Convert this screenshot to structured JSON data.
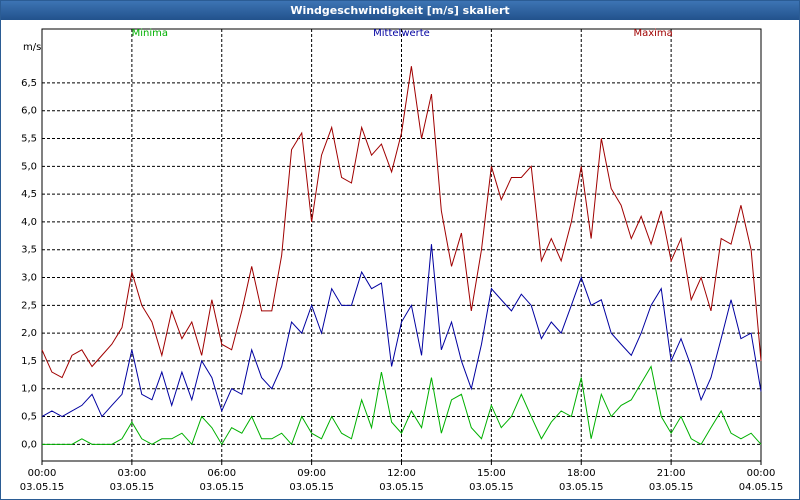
{
  "window_title": "Windgeschwindigkeit [m/s] skaliert",
  "chart_data": {
    "type": "line",
    "y_label": "m/s",
    "x": [
      0,
      0.33,
      0.67,
      1,
      1.33,
      1.67,
      2,
      2.33,
      2.67,
      3,
      3.33,
      3.67,
      4,
      4.33,
      4.67,
      5,
      5.33,
      5.67,
      6,
      6.33,
      6.67,
      7,
      7.33,
      7.67,
      8,
      8.33,
      8.67,
      9,
      9.33,
      9.67,
      10,
      10.33,
      10.67,
      11,
      11.33,
      11.67,
      12,
      12.33,
      12.67,
      13,
      13.33,
      13.67,
      14,
      14.33,
      14.67,
      15,
      15.33,
      15.67,
      16,
      16.33,
      16.67,
      17,
      17.33,
      17.67,
      18,
      18.33,
      18.67,
      19,
      19.33,
      19.67,
      20,
      20.33,
      20.67,
      21,
      21.33,
      21.67,
      22,
      22.33,
      22.67,
      23,
      23.33,
      23.67,
      24
    ],
    "series": [
      {
        "name": "Minima",
        "color": "#00b000",
        "values": [
          0,
          0,
          0,
          0,
          0.1,
          0,
          0,
          0,
          0.1,
          0.4,
          0.1,
          0,
          0.1,
          0.1,
          0.2,
          0,
          0.5,
          0.3,
          0,
          0.3,
          0.2,
          0.5,
          0.1,
          0.1,
          0.2,
          0,
          0.5,
          0.2,
          0.1,
          0.5,
          0.2,
          0.1,
          0.8,
          0.3,
          1.3,
          0.4,
          0.2,
          0.6,
          0.3,
          1.2,
          0.2,
          0.8,
          0.9,
          0.3,
          0.1,
          0.7,
          0.3,
          0.5,
          0.9,
          0.5,
          0.1,
          0.4,
          0.6,
          0.5,
          1.2,
          0.1,
          0.9,
          0.5,
          0.7,
          0.8,
          1.1,
          1.4,
          0.5,
          0.2,
          0.5,
          0.1,
          0,
          0.3,
          0.6,
          0.2,
          0.1,
          0.2,
          0
        ]
      },
      {
        "name": "Mittelwerte",
        "color": "#0000a0",
        "values": [
          0.5,
          0.6,
          0.5,
          0.6,
          0.7,
          0.9,
          0.5,
          0.7,
          0.9,
          1.7,
          0.9,
          0.8,
          1.3,
          0.7,
          1.3,
          0.8,
          1.5,
          1.2,
          0.6,
          1.0,
          0.9,
          1.7,
          1.2,
          1.0,
          1.4,
          2.2,
          2.0,
          2.5,
          2.0,
          2.8,
          2.5,
          2.5,
          3.1,
          2.8,
          2.9,
          1.4,
          2.2,
          2.5,
          1.6,
          3.6,
          1.7,
          2.2,
          1.5,
          1.0,
          1.8,
          2.8,
          2.6,
          2.4,
          2.7,
          2.5,
          1.9,
          2.2,
          2.0,
          2.5,
          3.0,
          2.5,
          2.6,
          2.0,
          1.8,
          1.6,
          2.0,
          2.5,
          2.8,
          1.5,
          1.9,
          1.4,
          0.8,
          1.2,
          1.9,
          2.6,
          1.9,
          2.0,
          0.95
        ]
      },
      {
        "name": "Maxima",
        "color": "#a00000",
        "values": [
          1.7,
          1.3,
          1.2,
          1.6,
          1.7,
          1.4,
          1.6,
          1.8,
          2.1,
          3.1,
          2.5,
          2.2,
          1.6,
          2.4,
          1.9,
          2.2,
          1.6,
          2.6,
          1.8,
          1.7,
          2.4,
          3.2,
          2.4,
          2.4,
          3.4,
          5.3,
          5.6,
          4.0,
          5.2,
          5.7,
          4.8,
          4.7,
          5.7,
          5.2,
          5.4,
          4.9,
          5.6,
          6.8,
          5.5,
          6.3,
          4.2,
          3.2,
          3.8,
          2.4,
          3.5,
          5.0,
          4.4,
          4.8,
          4.8,
          5.0,
          3.3,
          3.7,
          3.3,
          4.0,
          5.0,
          3.7,
          5.5,
          4.6,
          4.3,
          3.7,
          4.1,
          3.6,
          4.2,
          3.3,
          3.7,
          2.6,
          3.0,
          2.4,
          3.7,
          3.6,
          4.3,
          3.5,
          1.5
        ]
      }
    ],
    "xlim": [
      0,
      24
    ],
    "xticks": [
      {
        "value": 0,
        "label": "00:00\n03.05.15"
      },
      {
        "value": 3,
        "label": "03:00\n03.05.15"
      },
      {
        "value": 6,
        "label": "06:00\n03.05.15"
      },
      {
        "value": 9,
        "label": "09:00\n03.05.15"
      },
      {
        "value": 12,
        "label": "12:00\n03.05.15"
      },
      {
        "value": 15,
        "label": "15:00\n03.05.15"
      },
      {
        "value": 18,
        "label": "18:00\n03.05.15"
      },
      {
        "value": 21,
        "label": "21:00\n03.05.15"
      },
      {
        "value": 24,
        "label": "00:00\n04.05.15"
      }
    ],
    "ylim": [
      -0.3,
      7.47
    ],
    "yticks": [
      {
        "value": 0,
        "label": "0,0"
      },
      {
        "value": 0.5,
        "label": "0,5"
      },
      {
        "value": 1,
        "label": "1,0"
      },
      {
        "value": 1.5,
        "label": "1,5"
      },
      {
        "value": 2,
        "label": "2,0"
      },
      {
        "value": 2.5,
        "label": "2,5"
      },
      {
        "value": 3,
        "label": "3,0"
      },
      {
        "value": 3.5,
        "label": "3,5"
      },
      {
        "value": 4,
        "label": "4,0"
      },
      {
        "value": 4.5,
        "label": "4,5"
      },
      {
        "value": 5,
        "label": "5,0"
      },
      {
        "value": 5.5,
        "label": "5,5"
      },
      {
        "value": 6,
        "label": "6,0"
      },
      {
        "value": 6.5,
        "label": "6,5"
      }
    ],
    "grid": true
  }
}
